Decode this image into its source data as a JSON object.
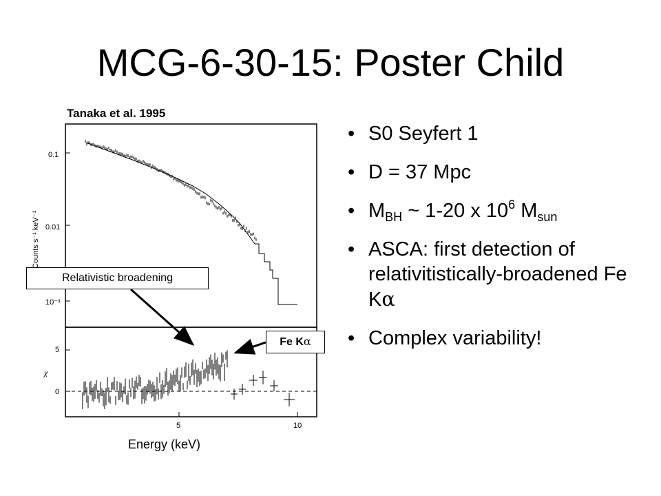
{
  "slide": {
    "title": "MCG-6-30-15: Poster Child"
  },
  "figure": {
    "credit": "Tanaka et al. 1995",
    "top_panel": {
      "ylabel": "Counts s⁻¹ keV⁻¹",
      "yticks": [
        "0.1",
        "0.01",
        "10⁻³"
      ]
    },
    "bottom_panel": {
      "ylabel": "χ",
      "yticks": [
        "5",
        "0"
      ],
      "xticks": [
        "5",
        "10"
      ]
    },
    "xlabel": "Energy (keV)",
    "callouts": {
      "relativistic": "Relativistic broadening",
      "fe_prefix": "Fe K",
      "fe_symbol": "α"
    }
  },
  "bullets": {
    "marker": "•",
    "b1": "S0 Seyfert 1",
    "b2": "D = 37 Mpc",
    "b3": {
      "m": "M",
      "bh": "BH",
      "mid": " ~ 1-20 x 10",
      "exp": "6",
      "m2": " M",
      "sun": "sun"
    },
    "b4": {
      "text": "ASCA: first detection of relativitistically-broadened Fe K",
      "symbol": "α"
    },
    "b5": "Complex variability!"
  }
}
